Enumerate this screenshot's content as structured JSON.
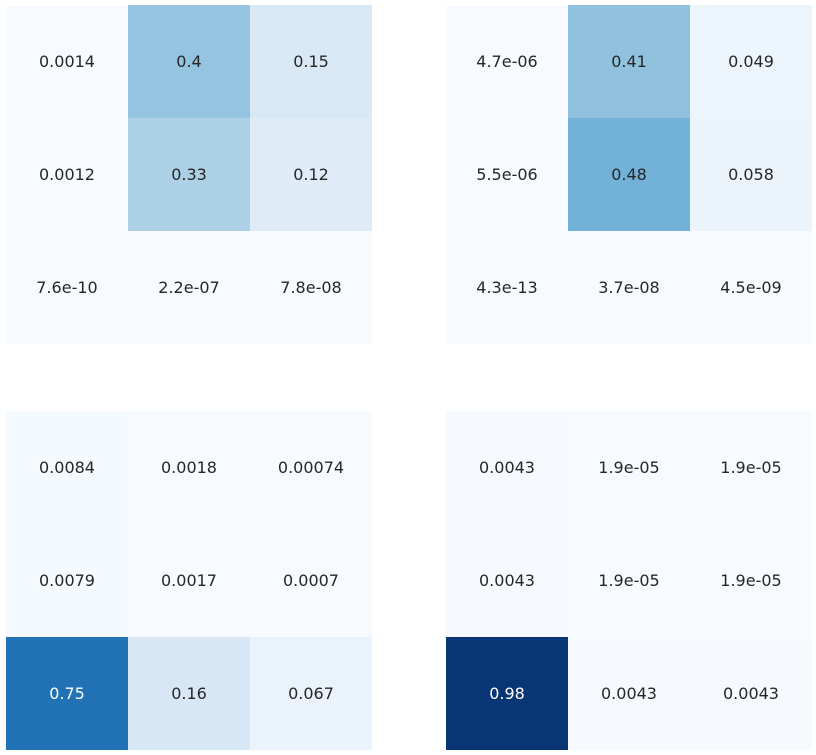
{
  "chart_data": [
    {
      "type": "heatmap",
      "title": "",
      "xlabel": "",
      "ylabel": "",
      "colormap": "Blues",
      "vmin": 0,
      "vmax": 1,
      "values": [
        [
          0.0014,
          0.4,
          0.15
        ],
        [
          0.0012,
          0.33,
          0.12
        ],
        [
          7.6e-10,
          2.2e-07,
          7.8e-08
        ]
      ],
      "labels": [
        [
          "0.0014",
          "0.4",
          "0.15"
        ],
        [
          "0.0012",
          "0.33",
          "0.12"
        ],
        [
          "7.6e-10",
          "2.2e-07",
          "7.8e-08"
        ]
      ]
    },
    {
      "type": "heatmap",
      "title": "",
      "xlabel": "",
      "ylabel": "",
      "colormap": "Blues",
      "vmin": 0,
      "vmax": 1,
      "values": [
        [
          4.7e-06,
          0.41,
          0.049
        ],
        [
          5.5e-06,
          0.48,
          0.058
        ],
        [
          4.3e-13,
          3.7e-08,
          4.5e-09
        ]
      ],
      "labels": [
        [
          "4.7e-06",
          "0.41",
          "0.049"
        ],
        [
          "5.5e-06",
          "0.48",
          "0.058"
        ],
        [
          "4.3e-13",
          "3.7e-08",
          "4.5e-09"
        ]
      ]
    },
    {
      "type": "heatmap",
      "title": "",
      "xlabel": "",
      "ylabel": "",
      "colormap": "Blues",
      "vmin": 0,
      "vmax": 1,
      "values": [
        [
          0.0084,
          0.0018,
          0.00074
        ],
        [
          0.0079,
          0.0017,
          0.0007
        ],
        [
          0.75,
          0.16,
          0.067
        ]
      ],
      "labels": [
        [
          "0.0084",
          "0.0018",
          "0.00074"
        ],
        [
          "0.0079",
          "0.0017",
          "0.0007"
        ],
        [
          "0.75",
          "0.16",
          "0.067"
        ]
      ]
    },
    {
      "type": "heatmap",
      "title": "",
      "xlabel": "",
      "ylabel": "",
      "colormap": "Blues",
      "vmin": 0,
      "vmax": 1,
      "values": [
        [
          0.0043,
          1.9e-05,
          1.9e-05
        ],
        [
          0.0043,
          1.9e-05,
          1.9e-05
        ],
        [
          0.98,
          0.0043,
          0.0043
        ]
      ],
      "labels": [
        [
          "0.0043",
          "1.9e-05",
          "1.9e-05"
        ],
        [
          "0.0043",
          "1.9e-05",
          "1.9e-05"
        ],
        [
          "0.98",
          "0.0043",
          "0.0043"
        ]
      ]
    }
  ]
}
